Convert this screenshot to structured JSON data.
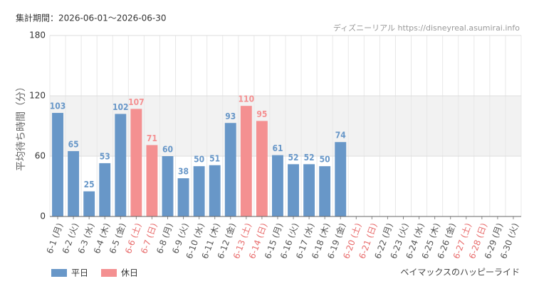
{
  "chart_data": {
    "type": "bar",
    "title": "集計期間：2026-06-01〜2026-06-30",
    "source": "ディズニーリアル https://disneyreal.asumirai.info",
    "y_label": "平均待ち時間（分）",
    "footer": "ベイマックスのハッピーライド",
    "categories": [
      "6-1 (月)",
      "6-2 (火)",
      "6-3 (水)",
      "6-4 (木)",
      "6-5 (金)",
      "6-6 (土)",
      "6-7 (日)",
      "6-8 (月)",
      "6-9 (火)",
      "6-10 (水)",
      "6-11 (木)",
      "6-12 (金)",
      "6-13 (土)",
      "6-14 (日)",
      "6-15 (月)",
      "6-16 (火)",
      "6-17 (水)",
      "6-18 (木)",
      "6-19 (金)",
      "6-20 (土)",
      "6-21 (日)",
      "6-22 (月)",
      "6-23 (火)",
      "6-24 (水)",
      "6-25 (木)",
      "6-26 (金)",
      "6-27 (土)",
      "6-28 (日)",
      "6-29 (月)",
      "6-30 (火)"
    ],
    "category_colors": [
      "#555",
      "#555",
      "#555",
      "#555",
      "#555",
      "#e86b6b",
      "#e86b6b",
      "#555",
      "#555",
      "#555",
      "#555",
      "#555",
      "#e86b6b",
      "#e86b6b",
      "#555",
      "#555",
      "#555",
      "#555",
      "#555",
      "#e86b6b",
      "#e86b6b",
      "#555",
      "#555",
      "#555",
      "#555",
      "#555",
      "#e86b6b",
      "#e86b6b",
      "#555",
      "#555"
    ],
    "series": [
      {
        "name": "平日",
        "color": "#6897c8",
        "values": [
          103,
          65,
          25,
          53,
          102,
          null,
          null,
          60,
          38,
          50,
          51,
          93,
          null,
          null,
          61,
          52,
          52,
          50,
          74,
          null,
          null,
          null,
          null,
          null,
          null,
          null,
          null,
          null,
          null,
          null
        ]
      },
      {
        "name": "休日",
        "color": "#f49091",
        "values": [
          null,
          null,
          null,
          null,
          null,
          107,
          71,
          null,
          null,
          null,
          null,
          null,
          110,
          95,
          null,
          null,
          null,
          null,
          null,
          null,
          null,
          null,
          null,
          null,
          null,
          null,
          null,
          null,
          null,
          null
        ]
      }
    ],
    "ylim": [
      0,
      180
    ],
    "yticks": [
      0,
      60,
      120,
      180
    ],
    "grid": true
  }
}
